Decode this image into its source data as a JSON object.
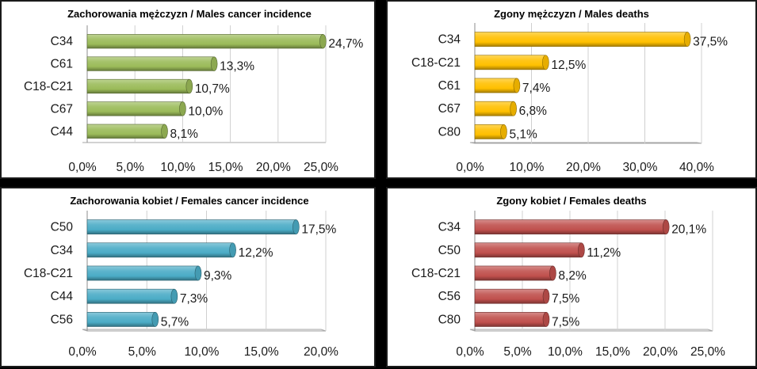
{
  "chart_data": [
    {
      "type": "bar",
      "orientation": "horizontal",
      "title": "Zachorowania mężczyzn / Males cancer incidence",
      "categories": [
        "C34",
        "C61",
        "C18-C21",
        "C67",
        "C44"
      ],
      "values": [
        24.7,
        13.3,
        10.7,
        10.0,
        8.1
      ],
      "data_labels": [
        "24,7%",
        "13,3%",
        "10,7%",
        "10,0%",
        "8,1%"
      ],
      "xlim": [
        0,
        25
      ],
      "ticks": [
        0,
        5,
        10,
        15,
        20,
        25
      ],
      "tick_labels": [
        "0,0%",
        "5,0%",
        "10,0%",
        "15,0%",
        "20,0%",
        "25,0%"
      ],
      "color": "#9bbb59",
      "xlabel": "",
      "ylabel": ""
    },
    {
      "type": "bar",
      "orientation": "horizontal",
      "title": "Zgony mężczyzn / Males deaths",
      "categories": [
        "C34",
        "C18-C21",
        "C61",
        "C67",
        "C80"
      ],
      "values": [
        37.5,
        12.5,
        7.4,
        6.8,
        5.1
      ],
      "data_labels": [
        "37,5%",
        "12,5%",
        "7,4%",
        "6,8%",
        "5,1%"
      ],
      "xlim": [
        0,
        40
      ],
      "ticks": [
        0,
        10,
        20,
        30,
        40
      ],
      "tick_labels": [
        "0,0%",
        "10,0%",
        "20,0%",
        "30,0%",
        "40,0%"
      ],
      "color": "#ffc000",
      "xlabel": "",
      "ylabel": ""
    },
    {
      "type": "bar",
      "orientation": "horizontal",
      "title": "Zachorowania kobiet / Females cancer incidence",
      "categories": [
        "C50",
        "C34",
        "C18-C21",
        "C44",
        "C56"
      ],
      "values": [
        17.5,
        12.2,
        9.3,
        7.3,
        5.7
      ],
      "data_labels": [
        "17,5%",
        "12,2%",
        "9,3%",
        "7,3%",
        "5,7%"
      ],
      "xlim": [
        0,
        20
      ],
      "ticks": [
        0,
        5,
        10,
        15,
        20
      ],
      "tick_labels": [
        "0,0%",
        "5,0%",
        "10,0%",
        "15,0%",
        "20,0%"
      ],
      "color": "#4bacc6",
      "xlabel": "",
      "ylabel": ""
    },
    {
      "type": "bar",
      "orientation": "horizontal",
      "title": "Zgony kobiet / Females deaths",
      "categories": [
        "C34",
        "C50",
        "C18-C21",
        "C56",
        "C80"
      ],
      "values": [
        20.1,
        11.2,
        8.2,
        7.5,
        7.5
      ],
      "data_labels": [
        "20,1%",
        "11,2%",
        "8,2%",
        "7,5%",
        "7,5%"
      ],
      "xlim": [
        0,
        25
      ],
      "ticks": [
        0,
        5,
        10,
        15,
        20,
        25
      ],
      "tick_labels": [
        "0,0%",
        "5,0%",
        "10,0%",
        "15,0%",
        "20,0%",
        "25,0%"
      ],
      "color": "#c0504d",
      "xlabel": "",
      "ylabel": ""
    }
  ]
}
